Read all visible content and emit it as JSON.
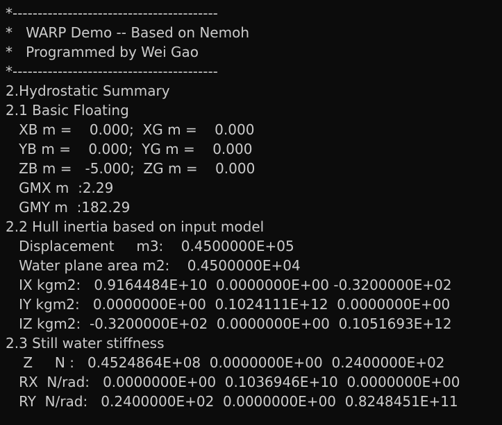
{
  "console": {
    "lines": [
      "*-----------------------------------------",
      "*   WARP Demo -- Based on Nemoh",
      "*   Programmed by Wei Gao",
      "*-----------------------------------------",
      "2.Hydrostatic Summary",
      "2.1 Basic Floating",
      "   XB m =    0.000;  XG m =    0.000",
      "   YB m =    0.000;  YG m =    0.000",
      "   ZB m =   -5.000;  ZG m =    0.000",
      "   GMX m  :2.29",
      "   GMY m  :182.29",
      "2.2 Hull inertia based on input model",
      "   Displacement     m3:    0.4500000E+05",
      "   Water plane area m2:    0.4500000E+04",
      "   IX kgm2:   0.9164484E+10  0.0000000E+00 -0.3200000E+02",
      "   IY kgm2:   0.0000000E+00  0.1024111E+12  0.0000000E+00",
      "   IZ kgm2:  -0.3200000E+02  0.0000000E+00  0.1051693E+12",
      "2.3 Still water stiffness",
      "    Z     N :   0.4524864E+08  0.0000000E+00  0.2400000E+02",
      "   RX  N/rad:   0.0000000E+00  0.1036946E+10  0.0000000E+00",
      "   RY  N/rad:   0.2400000E+02  0.0000000E+00  0.8248451E+11"
    ]
  }
}
